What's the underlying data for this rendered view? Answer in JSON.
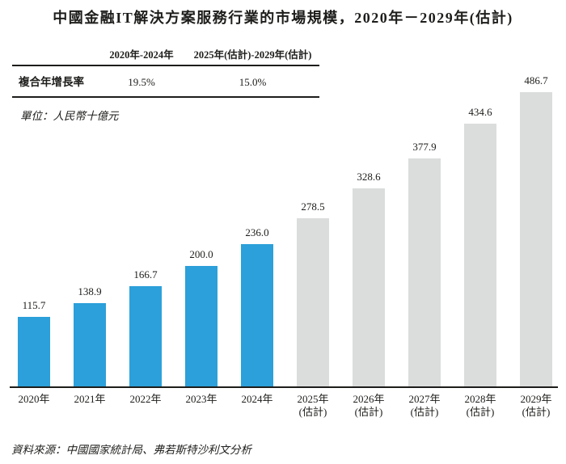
{
  "title": "中國金融IT解決方案服務行業的市場規模，2020年－2029年(估計)",
  "cagr_table": {
    "col1_header": "2020年-2024年",
    "col2_header": "2025年(估計)-2029年(估計)",
    "row_label": "複合年增長率",
    "col1_value": "19.5%",
    "col2_value": "15.0%"
  },
  "unit_label": "單位：人民幣十億元",
  "source_note": "資料來源：中國國家統計局、弗若斯特沙利文分析",
  "colors": {
    "actual_bar": "#2CA0DA",
    "estimate_bar": "#DBDCDC",
    "axis": "#1D1D1B",
    "text": "#1D1D1B"
  },
  "chart_data": {
    "type": "bar",
    "title": "中國金融IT解決方案服務行業的市場規模，2020年－2029年(估計)",
    "unit": "人民幣十億元",
    "categories": [
      "2020年",
      "2021年",
      "2022年",
      "2023年",
      "2024年",
      "2025年",
      "2026年",
      "2027年",
      "2028年",
      "2029年"
    ],
    "estimate_flags": [
      false,
      false,
      false,
      false,
      false,
      true,
      true,
      true,
      true,
      true
    ],
    "estimate_suffix": "(估計)",
    "values": [
      115.7,
      138.9,
      166.7,
      200.0,
      236.0,
      278.5,
      328.6,
      377.9,
      434.6,
      486.7
    ],
    "value_label_decimals": 1,
    "cagr_2020_2024": "19.5%",
    "cagr_2025_2029_est": "15.0%",
    "ylim": [
      0,
      500
    ],
    "grid": false,
    "legend_position": "none"
  }
}
